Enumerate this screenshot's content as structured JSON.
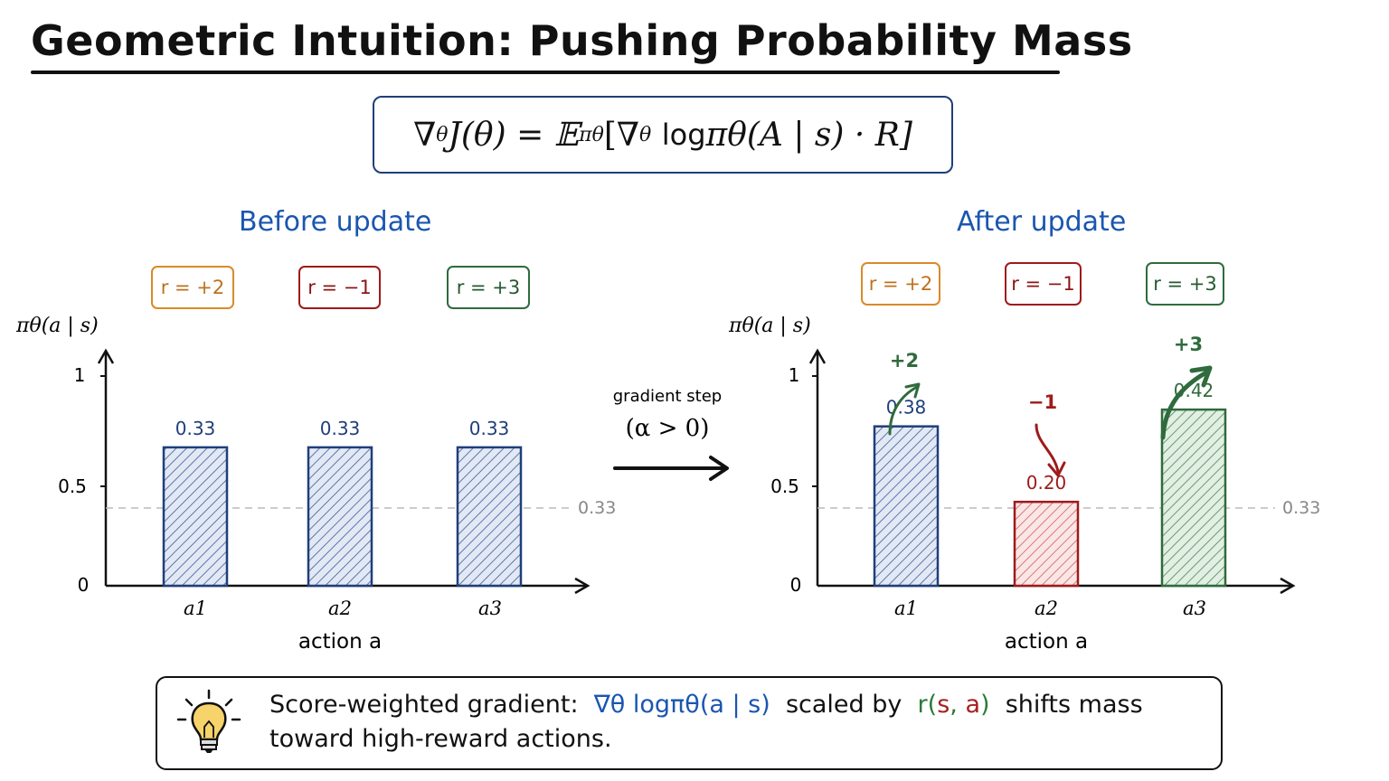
{
  "title": "Geometric Intuition: Pushing Probability Mass",
  "formula": {
    "nabla": "∇",
    "theta_sub": "θ",
    "j_theta": "J(θ) = 𝔼",
    "pi_sub": "πθ",
    "bracket_open": "[∇",
    "log": "log",
    "pi_theta": "πθ",
    "args": "(A | s) · R]"
  },
  "before": {
    "title": "Before update",
    "rewards": [
      "r = +2",
      "r = −1",
      "r = +3"
    ],
    "y_axis_label": "πθ(a | s)",
    "y_ticks": [
      "1",
      "0.5",
      "0"
    ],
    "x_ticks": [
      "a1",
      "a2",
      "a3"
    ],
    "x_axis_label": "action a",
    "bar_values": [
      0.33,
      0.33,
      0.33
    ],
    "bar_labels": [
      "0.33",
      "0.33",
      "0.33"
    ],
    "reference_label": "0.33"
  },
  "gradient_step": {
    "line1": "gradient step",
    "line2": "(α > 0)"
  },
  "after": {
    "title": "After update",
    "rewards": [
      "r = +2",
      "r = −1",
      "r = +3"
    ],
    "y_axis_label": "πθ(a | s)",
    "y_ticks": [
      "1",
      "0.5",
      "0"
    ],
    "x_ticks": [
      "a1",
      "a2",
      "a3"
    ],
    "x_axis_label": "action a",
    "bar_values": [
      0.38,
      0.2,
      0.42
    ],
    "bar_labels": [
      "0.38",
      "0.20",
      "0.42"
    ],
    "reference_label": "0.33",
    "delta_labels": [
      "+2",
      "−1",
      "+3"
    ]
  },
  "note": {
    "line1_a": "Score-weighted gradient:",
    "line1_b": "∇θ logπθ(a | s)",
    "line1_c": "scaled by",
    "line1_r": "r(",
    "line1_s": "s",
    "line1_comma": ", ",
    "line1_aa": "a",
    "line1_close": ")",
    "line1_d": "shifts mass",
    "line2": "toward high-reward actions."
  },
  "colors": {
    "blue": "#1f3f7a",
    "red": "#9e1b1b",
    "green": "#2f6b3c",
    "orange": "#d98a2a",
    "accent": "#1a56b0"
  },
  "icons": [
    "lightbulb-icon",
    "arrow-right-icon"
  ]
}
